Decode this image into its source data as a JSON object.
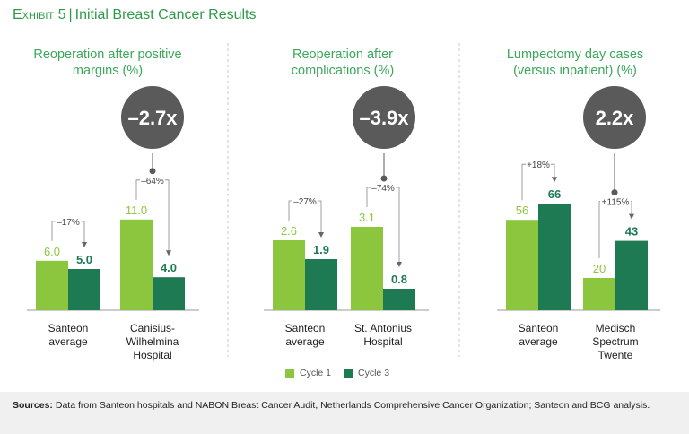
{
  "exhibit": {
    "label": "Exhibit 5",
    "title": "Initial Breast Cancer Results"
  },
  "colors": {
    "cycle1": "#8cc63f",
    "cycle3": "#1d7a52",
    "circle": "#5a5a5a",
    "title_green": "#3aa85a"
  },
  "legend": [
    {
      "name": "Cycle 1",
      "color": "#8cc63f"
    },
    {
      "name": "Cycle 3",
      "color": "#1d7a52"
    }
  ],
  "source": {
    "label": "Sources:",
    "text": "Data from Santeon hospitals and NABON Breast Cancer Audit, Netherlands Comprehensive Cancer Organization; Santeon and BCG analysis."
  },
  "chart_data": [
    {
      "type": "bar",
      "title": [
        "Reoperation after positive",
        "margins (%)"
      ],
      "series": [
        "Cycle 1",
        "Cycle 3"
      ],
      "groups": [
        {
          "label": [
            "Santeon",
            "average"
          ],
          "values": [
            6.0,
            5.0
          ],
          "labels": [
            "6.0",
            "5.0"
          ],
          "change": "–17%"
        },
        {
          "label": [
            "Canisius-",
            "Wilhelmina",
            "Hospital"
          ],
          "values": [
            11.0,
            4.0
          ],
          "labels": [
            "11.0",
            "4.0"
          ],
          "change": "–64%"
        }
      ],
      "multiplier": "–2.7x",
      "multiplier_group": 1
    },
    {
      "type": "bar",
      "title": [
        "Reoperation after",
        "complications (%)"
      ],
      "series": [
        "Cycle 1",
        "Cycle 3"
      ],
      "groups": [
        {
          "label": [
            "Santeon",
            "average"
          ],
          "values": [
            2.6,
            1.9
          ],
          "labels": [
            "2.6",
            "1.9"
          ],
          "change": "–27%"
        },
        {
          "label": [
            "St. Antonius",
            "Hospital"
          ],
          "values": [
            3.1,
            0.8
          ],
          "labels": [
            "3.1",
            "0.8"
          ],
          "change": "–74%"
        }
      ],
      "multiplier": "–3.9x",
      "multiplier_group": 1
    },
    {
      "type": "bar",
      "title": [
        "Lumpectomy day cases",
        "(versus inpatient) (%)"
      ],
      "series": [
        "Cycle 1",
        "Cycle 3"
      ],
      "groups": [
        {
          "label": [
            "Santeon",
            "average"
          ],
          "values": [
            56,
            66
          ],
          "labels": [
            "56",
            "66"
          ],
          "change": "+18%"
        },
        {
          "label": [
            "Medisch",
            "Spectrum",
            "Twente"
          ],
          "values": [
            20,
            43
          ],
          "labels": [
            "20",
            "43"
          ],
          "change": "+115%"
        }
      ],
      "multiplier": "2.2x",
      "multiplier_group": 1
    }
  ]
}
